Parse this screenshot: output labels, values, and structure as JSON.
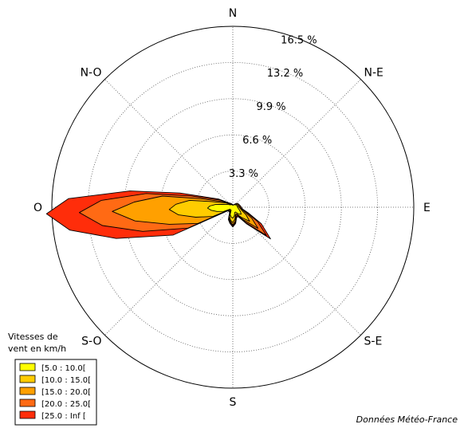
{
  "chart_data": {
    "type": "area",
    "chart_kind": "wind-rose",
    "directions": [
      "N",
      "N-E",
      "E",
      "S-E",
      "S",
      "S-O",
      "O",
      "N-O"
    ],
    "ring_labels": [
      "3.3 %",
      "6.6 %",
      "9.9 %",
      "13.2 %",
      "16.5 %"
    ],
    "ring_values": [
      3.3,
      6.6,
      9.9,
      13.2,
      16.5
    ],
    "rmax": 16.5,
    "angle_unit": "degrees_clockwise_from_north",
    "legend_title": [
      "Vitesses de",
      "vent en km/h"
    ],
    "legend_position": "bottom-left",
    "grid": true,
    "series": [
      {
        "name": "[25.0 : Inf [",
        "color": "#ff2d0a",
        "points": [
          [
            0,
            0.2
          ],
          [
            20,
            0.2
          ],
          [
            30,
            0.3
          ],
          [
            45,
            0.5
          ],
          [
            60,
            0.6
          ],
          [
            80,
            0.7
          ],
          [
            100,
            0.9
          ],
          [
            110,
            1.5
          ],
          [
            120,
            3.0
          ],
          [
            130,
            4.5
          ],
          [
            140,
            2.0
          ],
          [
            150,
            1.0
          ],
          [
            160,
            1.0
          ],
          [
            170,
            1.5
          ],
          [
            180,
            1.8
          ],
          [
            190,
            1.5
          ],
          [
            200,
            1.2
          ],
          [
            210,
            0.6
          ],
          [
            220,
            0.5
          ],
          [
            235,
            0.6
          ],
          [
            245,
            6.0
          ],
          [
            255,
            11.0
          ],
          [
            262,
            15.0
          ],
          [
            268,
            17.0
          ],
          [
            273,
            15.0
          ],
          [
            279,
            9.5
          ],
          [
            285,
            5.0
          ],
          [
            300,
            1.5
          ],
          [
            315,
            0.6
          ],
          [
            330,
            0.4
          ],
          [
            345,
            0.3
          ]
        ]
      },
      {
        "name": "[20.0 : 25.0[",
        "color": "#ff6a14",
        "points": [
          [
            0,
            0.2
          ],
          [
            20,
            0.2
          ],
          [
            30,
            0.3
          ],
          [
            45,
            0.5
          ],
          [
            60,
            0.6
          ],
          [
            80,
            0.7
          ],
          [
            100,
            0.9
          ],
          [
            110,
            1.3
          ],
          [
            120,
            2.6
          ],
          [
            130,
            4.0
          ],
          [
            140,
            1.8
          ],
          [
            150,
            0.9
          ],
          [
            160,
            0.9
          ],
          [
            170,
            1.4
          ],
          [
            180,
            1.7
          ],
          [
            190,
            1.4
          ],
          [
            200,
            1.1
          ],
          [
            210,
            0.5
          ],
          [
            220,
            0.5
          ],
          [
            235,
            0.5
          ],
          [
            245,
            4.5
          ],
          [
            255,
            8.5
          ],
          [
            262,
            12.0
          ],
          [
            268,
            14.0
          ],
          [
            273,
            12.0
          ],
          [
            279,
            8.0
          ],
          [
            285,
            4.0
          ],
          [
            300,
            1.3
          ],
          [
            315,
            0.5
          ],
          [
            330,
            0.4
          ],
          [
            345,
            0.3
          ]
        ]
      },
      {
        "name": "[15.0 : 20.0[",
        "color": "#ffa000",
        "points": [
          [
            0,
            0.2
          ],
          [
            20,
            0.2
          ],
          [
            30,
            0.3
          ],
          [
            45,
            0.5
          ],
          [
            60,
            0.6
          ],
          [
            80,
            0.6
          ],
          [
            100,
            0.8
          ],
          [
            110,
            1.1
          ],
          [
            120,
            2.0
          ],
          [
            130,
            3.0
          ],
          [
            140,
            1.5
          ],
          [
            150,
            0.8
          ],
          [
            160,
            0.8
          ],
          [
            170,
            1.3
          ],
          [
            180,
            1.6
          ],
          [
            190,
            1.3
          ],
          [
            200,
            1.0
          ],
          [
            210,
            0.5
          ],
          [
            220,
            0.4
          ],
          [
            235,
            0.5
          ],
          [
            245,
            3.5
          ],
          [
            255,
            6.0
          ],
          [
            262,
            9.0
          ],
          [
            268,
            11.0
          ],
          [
            273,
            9.0
          ],
          [
            279,
            6.5
          ],
          [
            285,
            3.0
          ],
          [
            300,
            1.0
          ],
          [
            315,
            0.5
          ],
          [
            330,
            0.4
          ],
          [
            345,
            0.3
          ]
        ]
      },
      {
        "name": "[10.0 : 15.0[",
        "color": "#ffcc00",
        "points": [
          [
            0,
            0.2
          ],
          [
            20,
            0.2
          ],
          [
            30,
            0.3
          ],
          [
            45,
            0.4
          ],
          [
            60,
            0.5
          ],
          [
            80,
            0.5
          ],
          [
            100,
            0.7
          ],
          [
            110,
            0.9
          ],
          [
            120,
            1.4
          ],
          [
            130,
            2.0
          ],
          [
            140,
            1.2
          ],
          [
            150,
            0.7
          ],
          [
            160,
            0.7
          ],
          [
            170,
            1.1
          ],
          [
            180,
            1.4
          ],
          [
            190,
            1.2
          ],
          [
            200,
            0.9
          ],
          [
            210,
            0.4
          ],
          [
            220,
            0.4
          ],
          [
            235,
            0.4
          ],
          [
            245,
            2.0
          ],
          [
            255,
            3.5
          ],
          [
            262,
            5.0
          ],
          [
            268,
            5.8
          ],
          [
            273,
            5.2
          ],
          [
            279,
            4.0
          ],
          [
            285,
            2.0
          ],
          [
            300,
            0.8
          ],
          [
            315,
            0.4
          ],
          [
            330,
            0.3
          ],
          [
            345,
            0.3
          ]
        ]
      },
      {
        "name": "[5.0 : 10.0[",
        "color": "#ffff00",
        "points": [
          [
            0,
            0.2
          ],
          [
            20,
            0.2
          ],
          [
            30,
            0.3
          ],
          [
            45,
            0.3
          ],
          [
            60,
            0.4
          ],
          [
            80,
            0.4
          ],
          [
            100,
            0.5
          ],
          [
            110,
            0.6
          ],
          [
            120,
            0.8
          ],
          [
            130,
            1.0
          ],
          [
            140,
            0.8
          ],
          [
            150,
            0.5
          ],
          [
            160,
            0.5
          ],
          [
            170,
            0.8
          ],
          [
            180,
            1.0
          ],
          [
            190,
            0.9
          ],
          [
            200,
            0.7
          ],
          [
            210,
            0.3
          ],
          [
            220,
            0.3
          ],
          [
            235,
            0.3
          ],
          [
            245,
            0.9
          ],
          [
            255,
            1.5
          ],
          [
            262,
            2.0
          ],
          [
            268,
            2.3
          ],
          [
            273,
            2.1
          ],
          [
            279,
            1.6
          ],
          [
            285,
            1.0
          ],
          [
            300,
            0.5
          ],
          [
            315,
            0.3
          ],
          [
            330,
            0.3
          ],
          [
            345,
            0.2
          ]
        ]
      }
    ]
  },
  "credit": "Données Météo-France"
}
